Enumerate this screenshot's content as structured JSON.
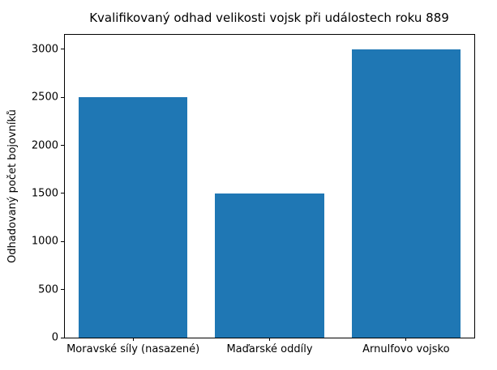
{
  "chart_data": {
    "type": "bar",
    "title": "Kvalifikovaný odhad velikosti vojsk při událostech roku 889",
    "xlabel": "",
    "ylabel": "Odhadovaný počet bojovníků",
    "categories": [
      "Moravské síly (nasazené)",
      "Maďarské oddíly",
      "Arnulfovo vojsko"
    ],
    "values": [
      2500,
      1500,
      3000
    ],
    "yticks": [
      0,
      500,
      1000,
      1500,
      2000,
      2500,
      3000
    ],
    "ylim": [
      0,
      3150
    ],
    "bar_color": "#1f77b4",
    "bar_width_fraction": 0.8,
    "grid": false,
    "legend": null,
    "background_color": "#ffffff",
    "spine_color": "#000000"
  }
}
